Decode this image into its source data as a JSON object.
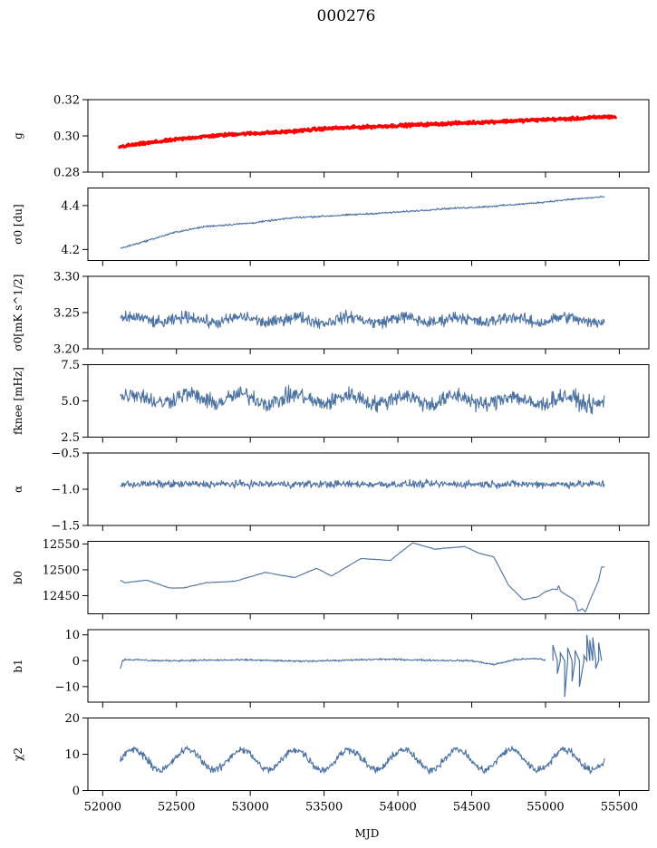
{
  "figure": {
    "title": "000276",
    "xlabel": "MJD",
    "x_ticks": [
      52000,
      52500,
      53000,
      53500,
      54000,
      54500,
      55000,
      55500
    ],
    "x_range": [
      51900,
      55700
    ]
  },
  "chart_data": [
    {
      "type": "line",
      "ylabel": "g",
      "ylim": [
        0.28,
        0.32
      ],
      "y_ticks": [
        "0.28",
        "0.30",
        "0.32"
      ],
      "series": [
        {
          "role": "data",
          "color": "#4c72a4",
          "x": [
            52120,
            52300,
            52600,
            52900,
            53200,
            53500,
            53800,
            54100,
            54400,
            54700,
            55000,
            55200,
            55400
          ],
          "y": [
            0.294,
            0.296,
            0.299,
            0.301,
            0.302,
            0.304,
            0.305,
            0.306,
            0.307,
            0.308,
            0.309,
            0.309,
            0.31
          ],
          "noise": 0.0007
        },
        {
          "role": "fit",
          "color": "#ff0000",
          "x": [
            52110,
            52300,
            52600,
            52900,
            53200,
            53500,
            53800,
            54100,
            54400,
            54700,
            55000,
            55200,
            55400,
            55480
          ],
          "y": [
            0.294,
            0.296,
            0.299,
            0.301,
            0.302,
            0.304,
            0.305,
            0.306,
            0.307,
            0.308,
            0.309,
            0.3095,
            0.3105,
            0.3105
          ],
          "noise": 0.0008
        }
      ]
    },
    {
      "type": "line",
      "ylabel": "σ0 [du]",
      "ylim": [
        4.15,
        4.48
      ],
      "y_ticks": [
        "4.2",
        "4.4"
      ],
      "series": [
        {
          "role": "data",
          "color": "#4c72a4",
          "x": [
            52120,
            52300,
            52500,
            52700,
            53000,
            53300,
            53600,
            54000,
            54300,
            54600,
            54900,
            55200,
            55400
          ],
          "y": [
            4.205,
            4.24,
            4.28,
            4.305,
            4.32,
            4.345,
            4.355,
            4.37,
            4.385,
            4.395,
            4.41,
            4.43,
            4.44
          ],
          "noise": 0.004
        }
      ]
    },
    {
      "type": "line",
      "ylabel": "σ0[mK s^1/2]",
      "ylim": [
        3.2,
        3.3
      ],
      "y_ticks": [
        "3.20",
        "3.25",
        "3.30"
      ],
      "series": [
        {
          "role": "data",
          "color": "#4c72a4",
          "x": [
            52120,
            55400
          ],
          "y": [
            3.24,
            3.24
          ],
          "noise": 0.008,
          "wobble": 0.004,
          "wobble_period": 365
        }
      ]
    },
    {
      "type": "line",
      "ylabel": "fknee [mHz]",
      "ylim": [
        2.5,
        7.5
      ],
      "y_ticks": [
        "2.5",
        "5.0",
        "7.5"
      ],
      "series": [
        {
          "role": "data",
          "color": "#4c72a4",
          "x": [
            52120,
            55400
          ],
          "y": [
            5.2,
            5.0
          ],
          "noise": 0.55,
          "wobble": 0.3,
          "wobble_period": 365
        }
      ]
    },
    {
      "type": "line",
      "ylabel": "α",
      "ylim": [
        -1.5,
        -0.5
      ],
      "y_ticks": [
        "−1.5",
        "−1.0",
        "−0.5"
      ],
      "series": [
        {
          "role": "data",
          "color": "#4c72a4",
          "x": [
            52120,
            55400
          ],
          "y": [
            -0.93,
            -0.93
          ],
          "noise": 0.05
        }
      ]
    },
    {
      "type": "line",
      "ylabel": "b0",
      "ylim": [
        12415,
        12555
      ],
      "y_ticks": [
        "12450",
        "12500",
        "12550"
      ],
      "series": [
        {
          "role": "data",
          "color": "#4c72a4",
          "x": [
            52120,
            52150,
            52300,
            52450,
            52550,
            52700,
            52900,
            53100,
            53300,
            53450,
            53550,
            53650,
            53750,
            53850,
            53950,
            54000,
            54100,
            54250,
            54450,
            54550,
            54650,
            54750,
            54850,
            54950,
            55000,
            55050,
            55080,
            55090,
            55100,
            55120,
            55150,
            55180,
            55200,
            55220,
            55250,
            55270,
            55300,
            55330,
            55360,
            55380,
            55400
          ],
          "y": [
            12480,
            12475,
            12480,
            12465,
            12465,
            12475,
            12478,
            12495,
            12485,
            12503,
            12488,
            12505,
            12522,
            12520,
            12518,
            12530,
            12552,
            12540,
            12545,
            12532,
            12525,
            12470,
            12442,
            12448,
            12458,
            12463,
            12462,
            12470,
            12460,
            12455,
            12450,
            12445,
            12440,
            12420,
            12425,
            12418,
            12440,
            12460,
            12480,
            12506,
            12505
          ],
          "noise": 0.6
        }
      ]
    },
    {
      "type": "line",
      "ylabel": "b1",
      "ylim": [
        -16,
        12
      ],
      "y_ticks": [
        "−10",
        "0",
        "10"
      ],
      "series": [
        {
          "role": "data",
          "color": "#4c72a4",
          "x": [
            52120,
            52135,
            52150,
            52400,
            52700,
            53000,
            53300,
            53600,
            53900,
            54200,
            54500,
            54650,
            54800,
            54950,
            55000
          ],
          "y": [
            -3,
            0,
            0.5,
            0,
            0.2,
            0.3,
            -0.2,
            0.1,
            0.6,
            0.2,
            0,
            -1.5,
            0.5,
            0.8,
            0.2
          ],
          "noise": 0.35
        },
        {
          "role": "spikes",
          "color": "#4c72a4",
          "x": [
            55050,
            55080,
            55100,
            55130,
            55150,
            55180,
            55200,
            55230,
            55260,
            55280,
            55300,
            55320,
            55340,
            55360,
            55380
          ],
          "y": [
            6,
            -5,
            3,
            -14,
            5,
            -8,
            4,
            -10,
            2,
            10,
            8,
            9,
            -3,
            7,
            0
          ],
          "noise": 0
        }
      ]
    },
    {
      "type": "line",
      "ylabel": "χ2",
      "ylim": [
        0,
        20
      ],
      "y_ticks": [
        "0",
        "10",
        "20"
      ],
      "series": [
        {
          "role": "data",
          "color": "#4c72a4",
          "x": [
            52120,
            55400
          ],
          "y": [
            8.5,
            8.5
          ],
          "noise": 1.0,
          "wobble": 2.8,
          "wobble_period": 365
        }
      ]
    }
  ]
}
